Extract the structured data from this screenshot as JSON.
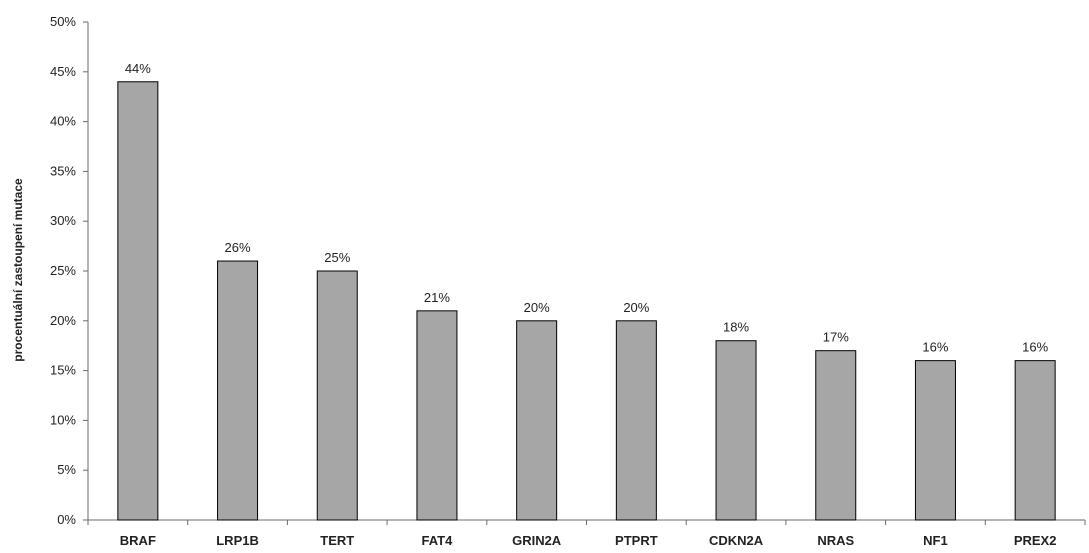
{
  "chart_data": {
    "type": "bar",
    "categories": [
      "BRAF",
      "LRP1B",
      "TERT",
      "FAT4",
      "GRIN2A",
      "PTPRT",
      "CDKN2A",
      "NRAS",
      "NF1",
      "PREX2"
    ],
    "values": [
      44,
      26,
      25,
      21,
      20,
      20,
      18,
      17,
      16,
      16
    ],
    "data_labels": [
      "44%",
      "26%",
      "25%",
      "21%",
      "20%",
      "20%",
      "18%",
      "17%",
      "16%",
      "16%"
    ],
    "ylabel": "procentuální  zastoupení  mutace",
    "ylim": [
      0,
      50
    ],
    "yticks": [
      "0%",
      "5%",
      "10%",
      "15%",
      "20%",
      "25%",
      "30%",
      "35%",
      "40%",
      "45%",
      "50%"
    ],
    "grid": false,
    "bar_color": "#a6a6a6",
    "bar_edge_color": "#000000"
  }
}
